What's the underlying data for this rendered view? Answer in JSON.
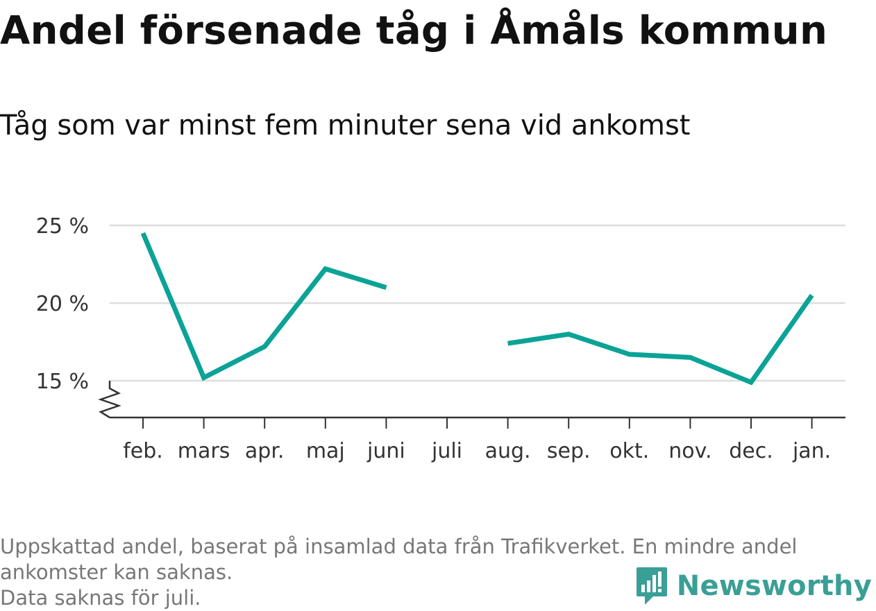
{
  "title": "Andel försenade tåg i Åmåls kommun",
  "subtitle": "Tåg som var minst fem minuter sena vid ankomst",
  "footnote": {
    "line1": "Uppskattad andel, baserat på insamlad data från Trafikverket. En mindre andel",
    "line2": "ankomster kan saknas.",
    "line3": "Data saknas för juli."
  },
  "brand": {
    "name": "Newsworthy",
    "icon": "bar-chart-pin-icon",
    "color": "#3a9f96"
  },
  "chart_data": {
    "type": "line",
    "categories": [
      "feb.",
      "mars",
      "apr.",
      "maj",
      "juni",
      "juli",
      "aug.",
      "sep.",
      "okt.",
      "nov.",
      "dec.",
      "jan."
    ],
    "series": [
      {
        "values": [
          24.5,
          15.2,
          17.2,
          22.2,
          21.0,
          null,
          17.4,
          18.0,
          16.7,
          16.5,
          14.9,
          20.5
        ]
      }
    ],
    "yticks": [
      15,
      20,
      25
    ],
    "ytick_labels": [
      "15 %",
      "20 %",
      "25 %"
    ],
    "ylim": [
      12.6,
      25.5
    ],
    "axis_break": true,
    "line_color": "#0aa396",
    "grid_color": "#dddddd",
    "grid": true,
    "missing": [
      "juli"
    ]
  }
}
